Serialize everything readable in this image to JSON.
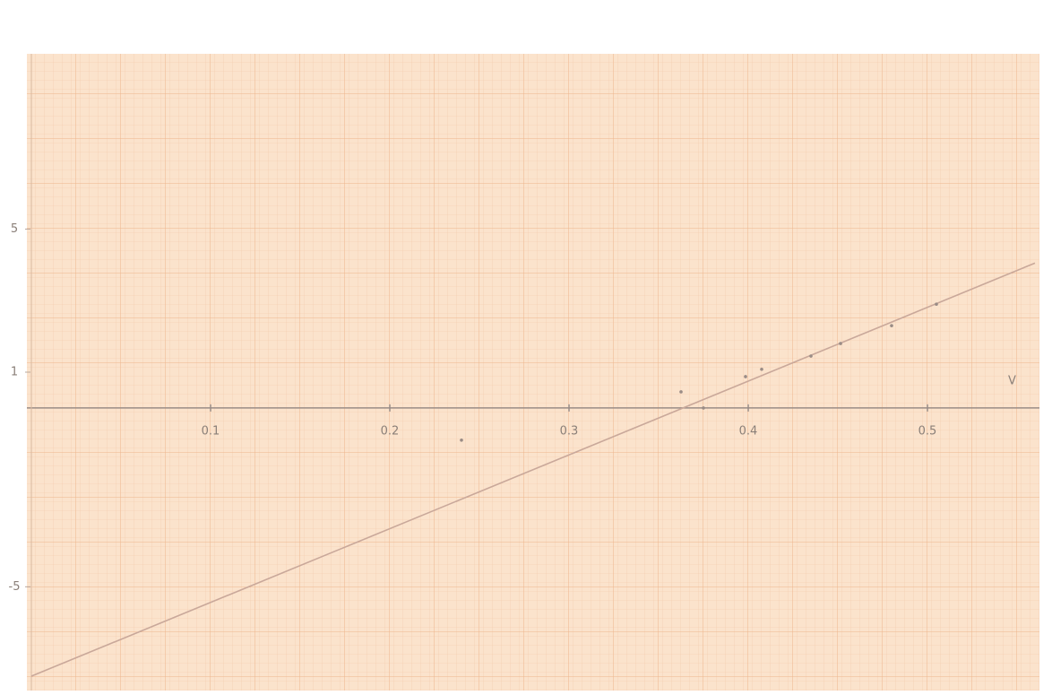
{
  "chart_data": {
    "type": "line",
    "xlim": [
      0,
      0.56
    ],
    "ylim": [
      -7.9,
      9.9
    ],
    "xticks": [
      0.1,
      0.2,
      0.3,
      0.4,
      0.5
    ],
    "yticks": [
      5,
      1,
      -5
    ],
    "x_label": "V",
    "x": [
      0,
      0.56
    ],
    "values": [
      -7.5,
      4.05
    ],
    "color": "#c9a89a",
    "points": {
      "x": [
        0.24,
        0.3625,
        0.375,
        0.3985,
        0.4075,
        0.435,
        0.4515,
        0.48,
        0.505
      ],
      "y": [
        -0.9,
        0.45,
        0,
        0.875,
        1.08,
        1.45,
        1.8,
        2.3,
        2.9
      ],
      "color": "#9a8c86"
    },
    "grid": true
  }
}
